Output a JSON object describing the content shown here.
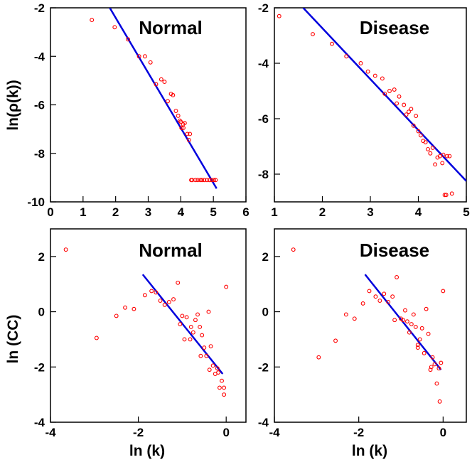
{
  "colors": {
    "points": "#ff0000",
    "fit": "#0000dd",
    "frame": "#000000"
  },
  "axis_labels": {
    "y_top": "ln(ρ(k))",
    "y_bottom": "ln (CC)",
    "x_left": "ln (k)",
    "x_right": "ln (k)"
  },
  "chart_data": [
    {
      "type": "scatter",
      "title": "Normal",
      "xlim": [
        0,
        6
      ],
      "ylim": [
        -10,
        -2
      ],
      "xticks": [
        "0",
        "1",
        "2",
        "3",
        "4",
        "5",
        "6"
      ],
      "yticks": [
        "-2",
        "-4",
        "-6",
        "-8",
        "-10"
      ],
      "grid": false,
      "x": [
        1.27,
        1.97,
        2.38,
        2.72,
        2.9,
        3.07,
        3.24,
        3.4,
        3.5,
        3.6,
        3.7,
        3.76,
        3.85,
        3.92,
        3.97,
        4.02,
        4.07,
        4.12,
        4.2,
        4.25,
        4.35,
        4.45,
        4.52,
        4.6,
        4.65,
        4.72,
        4.8,
        4.88,
        4.95,
        5.02,
        5.07,
        4.28,
        4.32,
        4.0,
        4.08
      ],
      "y": [
        -2.5,
        -2.8,
        -3.3,
        -4.0,
        -4.0,
        -4.25,
        -5.15,
        -4.95,
        -5.05,
        -5.85,
        -5.55,
        -5.6,
        -6.25,
        -6.45,
        -6.65,
        -6.95,
        -6.8,
        -6.75,
        -7.2,
        -7.45,
        -9.1,
        -9.1,
        -9.1,
        -9.1,
        -9.1,
        -9.1,
        -9.1,
        -9.1,
        -9.1,
        -9.1,
        -9.1,
        -7.2,
        -9.1,
        -6.7,
        -6.95
      ],
      "fit_line": {
        "x": [
          1.82,
          5.1
        ],
        "y": [
          -2.0,
          -9.45
        ]
      }
    },
    {
      "type": "scatter",
      "title": "Disease",
      "xlim": [
        1,
        5
      ],
      "ylim": [
        -9,
        -2
      ],
      "xticks": [
        "1",
        "2",
        "3",
        "4",
        "5"
      ],
      "yticks": [
        "-2",
        "-4",
        "-6",
        "-8"
      ],
      "grid": false,
      "x": [
        1.1,
        1.8,
        2.2,
        2.5,
        2.8,
        2.95,
        3.1,
        3.25,
        3.3,
        3.4,
        3.5,
        3.55,
        3.6,
        3.7,
        3.75,
        3.8,
        3.85,
        3.9,
        3.95,
        4.0,
        4.05,
        4.1,
        4.15,
        4.2,
        4.25,
        4.3,
        4.35,
        4.4,
        4.45,
        4.5,
        4.55,
        4.6,
        4.65,
        4.7,
        4.52,
        4.58
      ],
      "y": [
        -2.3,
        -2.95,
        -3.3,
        -3.75,
        -4.0,
        -4.3,
        -4.45,
        -4.55,
        -5.1,
        -5.0,
        -4.95,
        -5.45,
        -5.2,
        -5.5,
        -5.85,
        -5.75,
        -5.65,
        -6.25,
        -5.9,
        -6.45,
        -6.6,
        -6.8,
        -6.85,
        -7.1,
        -7.25,
        -7.05,
        -7.65,
        -7.4,
        -7.35,
        -7.6,
        -8.75,
        -7.35,
        -7.35,
        -8.7,
        -7.3,
        -8.75
      ],
      "fit_line": {
        "x": [
          1.6,
          5.0
        ],
        "y": [
          -2.0,
          -8.25
        ]
      }
    },
    {
      "type": "scatter",
      "title": "Normal",
      "xlim": [
        -4,
        0.45
      ],
      "ylim": [
        -4,
        3
      ],
      "xticks": [
        "-4",
        "-2",
        "0"
      ],
      "yticks": [
        "2",
        "0",
        "-2",
        "-4"
      ],
      "grid": false,
      "x": [
        -3.65,
        -2.95,
        -2.5,
        -2.3,
        -2.1,
        -1.85,
        -1.7,
        -1.6,
        -1.5,
        -1.4,
        -1.3,
        -1.2,
        -1.1,
        -1.0,
        -0.95,
        -0.9,
        -0.8,
        -0.75,
        -0.7,
        -0.65,
        -0.6,
        -0.55,
        -0.5,
        -0.45,
        -0.4,
        -0.35,
        -0.3,
        -0.25,
        -0.2,
        -0.15,
        -0.1,
        -0.05,
        -0.05,
        0.0,
        -1.05,
        -0.82,
        -0.58,
        -0.38,
        -0.18
      ],
      "y": [
        2.25,
        -0.95,
        -0.15,
        0.15,
        0.1,
        0.6,
        0.75,
        0.7,
        0.4,
        0.25,
        0.35,
        0.45,
        1.05,
        -0.15,
        -1.0,
        -0.2,
        -0.55,
        -0.75,
        -0.3,
        -0.1,
        -0.55,
        -0.85,
        -1.3,
        -1.6,
        0.0,
        -1.25,
        -1.95,
        -2.25,
        -2.05,
        -2.75,
        -2.5,
        -2.75,
        -3.0,
        0.9,
        -0.45,
        -1.0,
        -1.6,
        -2.1,
        -2.2
      ],
      "fit_line": {
        "x": [
          -1.9,
          -0.08
        ],
        "y": [
          1.35,
          -2.25
        ]
      }
    },
    {
      "type": "scatter",
      "title": "Disease",
      "xlim": [
        -4,
        0.55
      ],
      "ylim": [
        -4,
        3
      ],
      "xticks": [
        "-4",
        "-2",
        "0"
      ],
      "yticks": [
        "2",
        "0",
        "-2",
        "-4"
      ],
      "grid": false,
      "x": [
        -3.55,
        -2.95,
        -2.55,
        -2.3,
        -2.1,
        -1.9,
        -1.75,
        -1.6,
        -1.5,
        -1.4,
        -1.3,
        -1.2,
        -1.1,
        -1.0,
        -0.95,
        -0.9,
        -0.8,
        -0.75,
        -0.7,
        -0.65,
        -0.6,
        -0.55,
        -0.5,
        -0.45,
        -0.4,
        -0.35,
        -0.3,
        -0.25,
        -0.2,
        -0.15,
        -0.1,
        -0.05,
        -0.08,
        0.0,
        -1.15,
        -0.85,
        -0.6,
        -0.28
      ],
      "y": [
        2.25,
        -1.65,
        -1.05,
        -0.1,
        -0.25,
        0.3,
        0.75,
        0.55,
        0.4,
        0.65,
        0.35,
        0.55,
        1.25,
        -0.25,
        -0.3,
        0.05,
        -0.75,
        -0.45,
        -0.1,
        -0.55,
        -1.3,
        -1.0,
        -0.6,
        -1.5,
        0.1,
        -0.8,
        -2.1,
        -1.65,
        -1.9,
        -2.6,
        -2.05,
        -1.85,
        -3.25,
        0.75,
        -0.3,
        -0.35,
        -1.2,
        -2.0
      ],
      "fit_line": {
        "x": [
          -1.85,
          -0.05
        ],
        "y": [
          1.35,
          -2.1
        ]
      }
    }
  ]
}
